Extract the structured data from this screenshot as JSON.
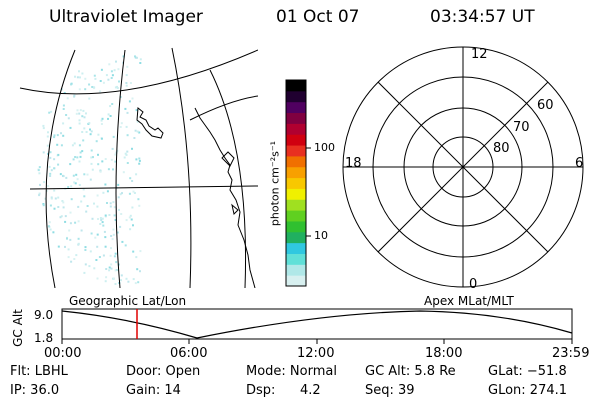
{
  "header": {
    "instrument": "Ultraviolet Imager",
    "date": "01 Oct 07",
    "time": "03:34:57 UT"
  },
  "colorbar": {
    "unit_label": "photon cm⁻²s⁻¹",
    "scale": "log",
    "ticks": [
      "100",
      "10"
    ],
    "colors": [
      "#d8f0f0",
      "#b0e8e8",
      "#60e0d8",
      "#30c8e0",
      "#20b060",
      "#30c030",
      "#60d020",
      "#a0e020",
      "#f0f000",
      "#f8c800",
      "#f8a000",
      "#f07000",
      "#e83020",
      "#d00010",
      "#b00030",
      "#800040",
      "#500060",
      "#200030",
      "#000000"
    ]
  },
  "polar_plot": {
    "mlt_labels": {
      "top": "12",
      "bottom": "0",
      "left": "18",
      "right": "6"
    },
    "lat_labels": [
      "60",
      "70",
      "80"
    ]
  },
  "timeline": {
    "left_title": "Geographic Lat/Lon",
    "right_title": "Apex MLat/MLT",
    "y_axis_label": "GC Alt",
    "y_ticks": [
      "9.0",
      "1.8"
    ],
    "x_ticks": [
      "00:00",
      "06:00",
      "12:00",
      "18:00",
      "23:59"
    ],
    "marker_color": "#e00000"
  },
  "status": {
    "flt": "Flt: LBHL",
    "ip": "IP: 36.0",
    "door": "Door: Open",
    "gain": "Gain: 14",
    "mode": "Mode: Normal",
    "dsp_label": "Dsp:",
    "dsp_value": "4.2",
    "gc_alt": "GC Alt: 5.8 Re",
    "seq": "Seq: 39",
    "glat": "GLat: −51.8",
    "glon": "GLon: 274.1"
  }
}
